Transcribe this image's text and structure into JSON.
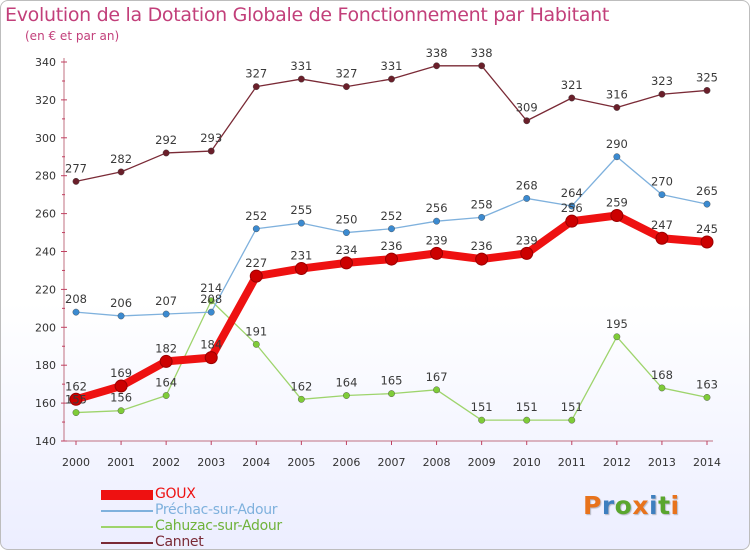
{
  "title": "Evolution de la Dotation Globale de Fonctionnement par Habitant",
  "subtitle": "(en € et par an)",
  "logo": {
    "text": "Proxiti",
    "colors": [
      "#e8731c",
      "#3d7fbf",
      "#5aa62e",
      "#e8731c",
      "#3d7fbf",
      "#5aa62e",
      "#e8731c"
    ]
  },
  "chart_data": {
    "type": "line",
    "title": "Evolution de la Dotation Globale de Fonctionnement par Habitant",
    "subtitle": "(en € et par an)",
    "categories": [
      "2000",
      "2001",
      "2002",
      "2003",
      "2004",
      "2005",
      "2006",
      "2007",
      "2008",
      "2009",
      "2010",
      "2011",
      "2012",
      "2013",
      "2014"
    ],
    "ylim": [
      140,
      340
    ],
    "yticks": [
      "140",
      "160",
      "180",
      "200",
      "220",
      "240",
      "260",
      "280",
      "300",
      "320",
      "340"
    ],
    "grid": false,
    "legend_position": "bottom-left",
    "series": [
      {
        "name": "GOUX",
        "color": "#ee1111",
        "marker": "#cc0000",
        "values": [
          162,
          169,
          182,
          184,
          227,
          231,
          234,
          236,
          239,
          236,
          239,
          256,
          259,
          247,
          245
        ]
      },
      {
        "name": "Préchac-sur-Adour",
        "color": "#7fb1dd",
        "marker": "#3b8ad0",
        "values": [
          208,
          206,
          207,
          208,
          252,
          255,
          250,
          252,
          256,
          258,
          268,
          264,
          290,
          270,
          265
        ]
      },
      {
        "name": "Cahuzac-sur-Adour",
        "color": "#9ed46c",
        "marker": "#7fcc38",
        "values": [
          155,
          156,
          164,
          214,
          191,
          162,
          164,
          165,
          167,
          151,
          151,
          151,
          195,
          168,
          163
        ]
      },
      {
        "name": "Cannet",
        "color": "#7a2a36",
        "marker": "#6a1f2a",
        "values": [
          277,
          282,
          292,
          293,
          327,
          331,
          327,
          331,
          338,
          338,
          309,
          321,
          316,
          323,
          325
        ]
      }
    ]
  }
}
